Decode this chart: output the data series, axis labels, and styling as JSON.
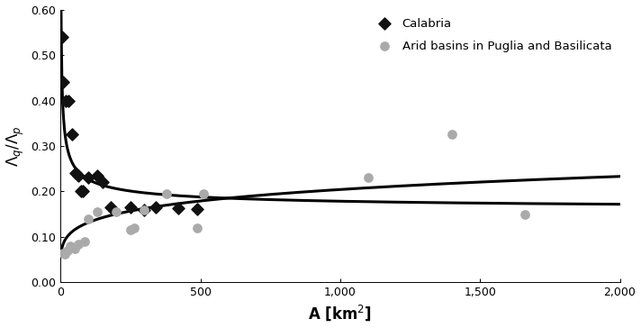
{
  "calabria_x": [
    5,
    10,
    20,
    30,
    40,
    55,
    65,
    75,
    80,
    100,
    130,
    150,
    180,
    250,
    300,
    340,
    420,
    490
  ],
  "calabria_y": [
    0.54,
    0.44,
    0.4,
    0.4,
    0.325,
    0.24,
    0.235,
    0.2,
    0.2,
    0.23,
    0.235,
    0.22,
    0.165,
    0.165,
    0.16,
    0.165,
    0.163,
    0.162
  ],
  "arid_x": [
    8,
    15,
    25,
    35,
    50,
    65,
    85,
    100,
    130,
    200,
    250,
    265,
    300,
    380,
    490,
    510,
    1100,
    1400,
    1660
  ],
  "arid_y": [
    0.065,
    0.062,
    0.07,
    0.08,
    0.075,
    0.085,
    0.09,
    0.14,
    0.155,
    0.155,
    0.115,
    0.12,
    0.16,
    0.195,
    0.12,
    0.195,
    0.23,
    0.325,
    0.15
  ],
  "calabria_color": "#111111",
  "arid_color": "#aaaaaa",
  "curve_color": "#000000",
  "xlabel": "A [km$^2$]",
  "ylabel": "$\\Lambda_q/\\Lambda_p$",
  "xlim": [
    0,
    2000
  ],
  "ylim": [
    0.0,
    0.6
  ],
  "yticks": [
    0.0,
    0.1,
    0.2,
    0.3,
    0.4,
    0.5,
    0.6
  ],
  "xticks": [
    0,
    500,
    1000,
    1500,
    2000
  ],
  "legend_labels": [
    "Calabria",
    "Arid basins in Puglia and Basilicata"
  ],
  "cal_a": 0.65,
  "cal_b": 0.48,
  "cal_c": 0.155,
  "arid_a": 0.055,
  "arid_b": 0.19,
  "figsize": [
    7.12,
    3.64
  ],
  "dpi": 100
}
